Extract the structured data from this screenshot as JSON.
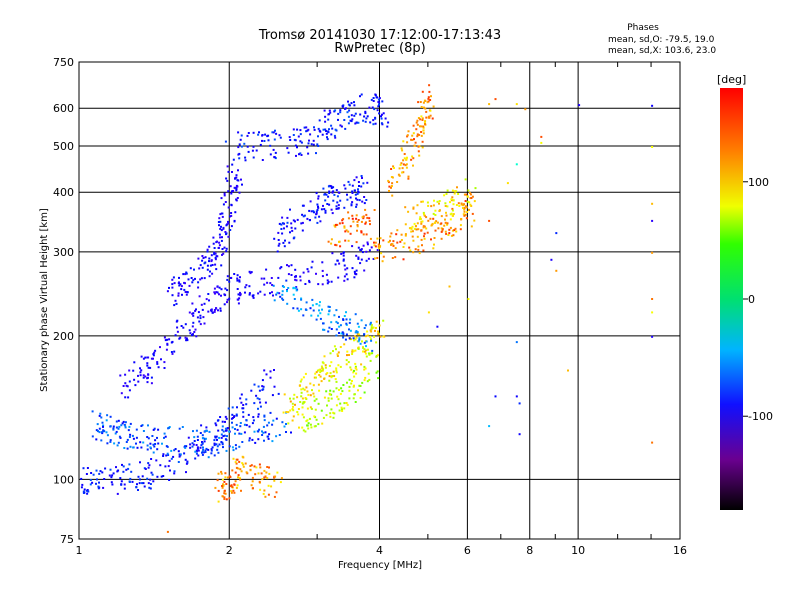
{
  "chart_data": {
    "type": "scatter",
    "title": "Tromsø 20141030 17:12:00-17:13:43",
    "subtitle": "RwPretec (8p)",
    "xlabel": "Frequency [MHz]",
    "ylabel": "Stationary phase Virtual Height [km]",
    "x_scale": "log",
    "y_scale": "log",
    "xlim": [
      1,
      16
    ],
    "ylim": [
      75,
      750
    ],
    "x_ticks": [
      1,
      2,
      4,
      6,
      8,
      10,
      16
    ],
    "y_ticks": [
      75,
      100,
      200,
      300,
      400,
      500,
      600,
      750
    ],
    "grid": true,
    "info_box": {
      "title": "Phases",
      "line1": "mean, sd,O: -79.5, 19.0",
      "line2": "mean, sd,X: 103.6, 23.0"
    },
    "colorbar": {
      "label": "[deg]",
      "ticks": [
        100,
        0,
        -100
      ],
      "range": [
        -180,
        180
      ],
      "colormap": "rainbow"
    },
    "traces": [
      {
        "points": [
          [
            1.0,
            100
          ],
          [
            1.1,
            100
          ],
          [
            1.25,
            101
          ],
          [
            1.4,
            104
          ],
          [
            1.6,
            112
          ],
          [
            1.8,
            122
          ],
          [
            2.0,
            132
          ],
          [
            2.2,
            142
          ],
          [
            2.5,
            165
          ]
        ],
        "phase": -90
      },
      {
        "points": [
          [
            1.05,
            130
          ],
          [
            1.15,
            128
          ],
          [
            1.25,
            125
          ],
          [
            1.4,
            122
          ],
          [
            1.6,
            121
          ],
          [
            1.8,
            120
          ],
          [
            2.0,
            122
          ],
          [
            2.3,
            126
          ],
          [
            2.6,
            135
          ]
        ],
        "phase": -70
      },
      {
        "points": [
          [
            1.2,
            155
          ],
          [
            1.35,
            170
          ],
          [
            1.5,
            190
          ],
          [
            1.65,
            210
          ],
          [
            1.8,
            230
          ],
          [
            1.95,
            248
          ],
          [
            2.1,
            256
          ],
          [
            2.5,
            262
          ],
          [
            3.0,
            272
          ],
          [
            3.5,
            285
          ],
          [
            3.9,
            300
          ]
        ],
        "phase": -110
      },
      {
        "points": [
          [
            1.5,
            245
          ],
          [
            1.65,
            260
          ],
          [
            1.8,
            280
          ],
          [
            1.9,
            300
          ],
          [
            1.95,
            340
          ],
          [
            2.0,
            400
          ],
          [
            2.05,
            440
          ]
        ],
        "phase": -105
      },
      {
        "points": [
          [
            2.0,
            500
          ],
          [
            2.3,
            505
          ],
          [
            2.7,
            510
          ],
          [
            3.0,
            520
          ],
          [
            3.2,
            560
          ],
          [
            3.5,
            600
          ],
          [
            3.9,
            600
          ],
          [
            4.1,
            590
          ]
        ],
        "phase": -90
      },
      {
        "points": [
          [
            2.5,
            320
          ],
          [
            2.7,
            350
          ],
          [
            3.0,
            370
          ],
          [
            3.2,
            390
          ],
          [
            3.5,
            400
          ],
          [
            3.7,
            410
          ]
        ],
        "phase": -95
      },
      {
        "points": [
          [
            2.6,
            140
          ],
          [
            2.8,
            150
          ],
          [
            3.0,
            165
          ],
          [
            3.2,
            175
          ],
          [
            3.5,
            185
          ],
          [
            3.8,
            195
          ],
          [
            4.0,
            205
          ]
        ],
        "phase": 115
      },
      {
        "points": [
          [
            2.8,
            135
          ],
          [
            3.0,
            138
          ],
          [
            3.3,
            150
          ],
          [
            3.6,
            160
          ],
          [
            3.9,
            175
          ]
        ],
        "phase": 95
      },
      {
        "points": [
          [
            2.5,
            250
          ],
          [
            2.8,
            230
          ],
          [
            3.2,
            215
          ],
          [
            3.5,
            210
          ],
          [
            3.8,
            200
          ]
        ],
        "phase": -60
      },
      {
        "points": [
          [
            3.9,
            300
          ],
          [
            4.3,
            310
          ],
          [
            4.8,
            320
          ],
          [
            5.3,
            335
          ],
          [
            5.9,
            360
          ],
          [
            6.0,
            380
          ]
        ],
        "phase": 145
      },
      {
        "points": [
          [
            4.2,
            420
          ],
          [
            4.5,
            470
          ],
          [
            4.7,
            520
          ],
          [
            4.9,
            580
          ],
          [
            5.0,
            630
          ]
        ],
        "phase": 140
      },
      {
        "points": [
          [
            4.5,
            350
          ],
          [
            5.0,
            365
          ],
          [
            5.5,
            380
          ],
          [
            5.9,
            400
          ]
        ],
        "phase": 120
      },
      {
        "points": [
          [
            3.2,
            320
          ],
          [
            3.5,
            340
          ],
          [
            3.8,
            350
          ]
        ],
        "phase": 150
      },
      {
        "points": [
          [
            1.9,
            95
          ],
          [
            2.0,
            100
          ],
          [
            2.1,
            105
          ],
          [
            2.3,
            100
          ],
          [
            2.5,
            98
          ]
        ],
        "phase": 140
      }
    ],
    "sparse_points": [
      [
        6.6,
        615,
        130
      ],
      [
        6.8,
        630,
        160
      ],
      [
        7.5,
        615,
        120
      ],
      [
        7.8,
        600,
        140
      ],
      [
        10.0,
        612,
        -110
      ],
      [
        14.0,
        610,
        -100
      ],
      [
        8.4,
        525,
        160
      ],
      [
        8.4,
        510,
        110
      ],
      [
        14.0,
        500,
        110
      ],
      [
        7.5,
        460,
        -10
      ],
      [
        7.2,
        420,
        120
      ],
      [
        6.2,
        410,
        90
      ],
      [
        9.0,
        330,
        -80
      ],
      [
        14.0,
        300,
        140
      ],
      [
        8.8,
        290,
        -110
      ],
      [
        14.0,
        240,
        150
      ],
      [
        14.0,
        225,
        110
      ],
      [
        9.0,
        275,
        140
      ],
      [
        7.5,
        195,
        -60
      ],
      [
        7.5,
        150,
        -100
      ],
      [
        7.6,
        145,
        -80
      ],
      [
        7.6,
        125,
        -100
      ],
      [
        9.5,
        170,
        130
      ],
      [
        14.0,
        200,
        -110
      ],
      [
        14.0,
        120,
        150
      ],
      [
        6.6,
        130,
        -40
      ],
      [
        6.8,
        150,
        -90
      ],
      [
        1.5,
        78,
        150
      ],
      [
        5.2,
        210,
        -100
      ],
      [
        5.0,
        225,
        120
      ],
      [
        6.0,
        240,
        110
      ],
      [
        5.5,
        255,
        130
      ],
      [
        14.0,
        350,
        -120
      ],
      [
        14.0,
        380,
        130
      ],
      [
        6.6,
        350,
        160
      ]
    ]
  }
}
